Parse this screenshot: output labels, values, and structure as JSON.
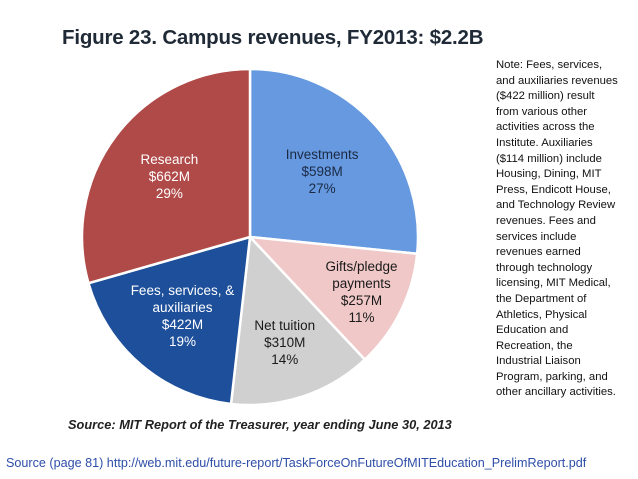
{
  "chart_data": {
    "type": "pie",
    "title": "Figure 23. Campus revenues, FY2013: $2.2B",
    "slices": [
      {
        "name": "Investments",
        "value_label": "$598M",
        "percent_label": "27%",
        "value": 598,
        "color": "#6699e0",
        "text_color": "#1b2a44"
      },
      {
        "name": "Gifts/pledge payments",
        "name_lines": [
          "Gifts/pledge",
          "payments"
        ],
        "value_label": "$257M",
        "percent_label": "11%",
        "value": 257,
        "color": "#f0c8c8",
        "text_color": "#1a1a1a"
      },
      {
        "name": "Net tuition",
        "value_label": "$310M",
        "percent_label": "14%",
        "value": 310,
        "color": "#d0d0d0",
        "text_color": "#1a1a1a"
      },
      {
        "name": "Fees, services, & auxiliaries",
        "name_lines": [
          "Fees, services, &",
          "auxiliaries"
        ],
        "value_label": "$422M",
        "percent_label": "19%",
        "value": 422,
        "color": "#1e4f9a",
        "text_color": "#ffffff"
      },
      {
        "name": "Research",
        "value_label": "$662M",
        "percent_label": "29%",
        "value": 662,
        "color": "#b04a48",
        "text_color": "#ffffff"
      }
    ],
    "source": "Source: MIT Report of the Treasurer, year ending June 30, 2013"
  },
  "note": "Note: Fees, services,\nand auxiliaries revenues\n($422 million) result\nfrom various other\nactivities across the\nInstitute. Auxiliaries\n($114 million) include\nHousing, Dining, MIT\nPress, Endicott House,\nand Technology Review\nrevenues. Fees and\nservices include\nrevenues earned\nthrough technology\nlicensing, MIT Medical,\nthe Department of\nAthletics, Physical\nEducation and\nRecreation, the\nIndustrial Liaison\nProgram, parking, and\nother ancillary activities.",
  "source_link": "Source (page 81) http://web.mit.edu/future-report/TaskForceOnFutureOfMITEducation_PrelimReport.pdf"
}
